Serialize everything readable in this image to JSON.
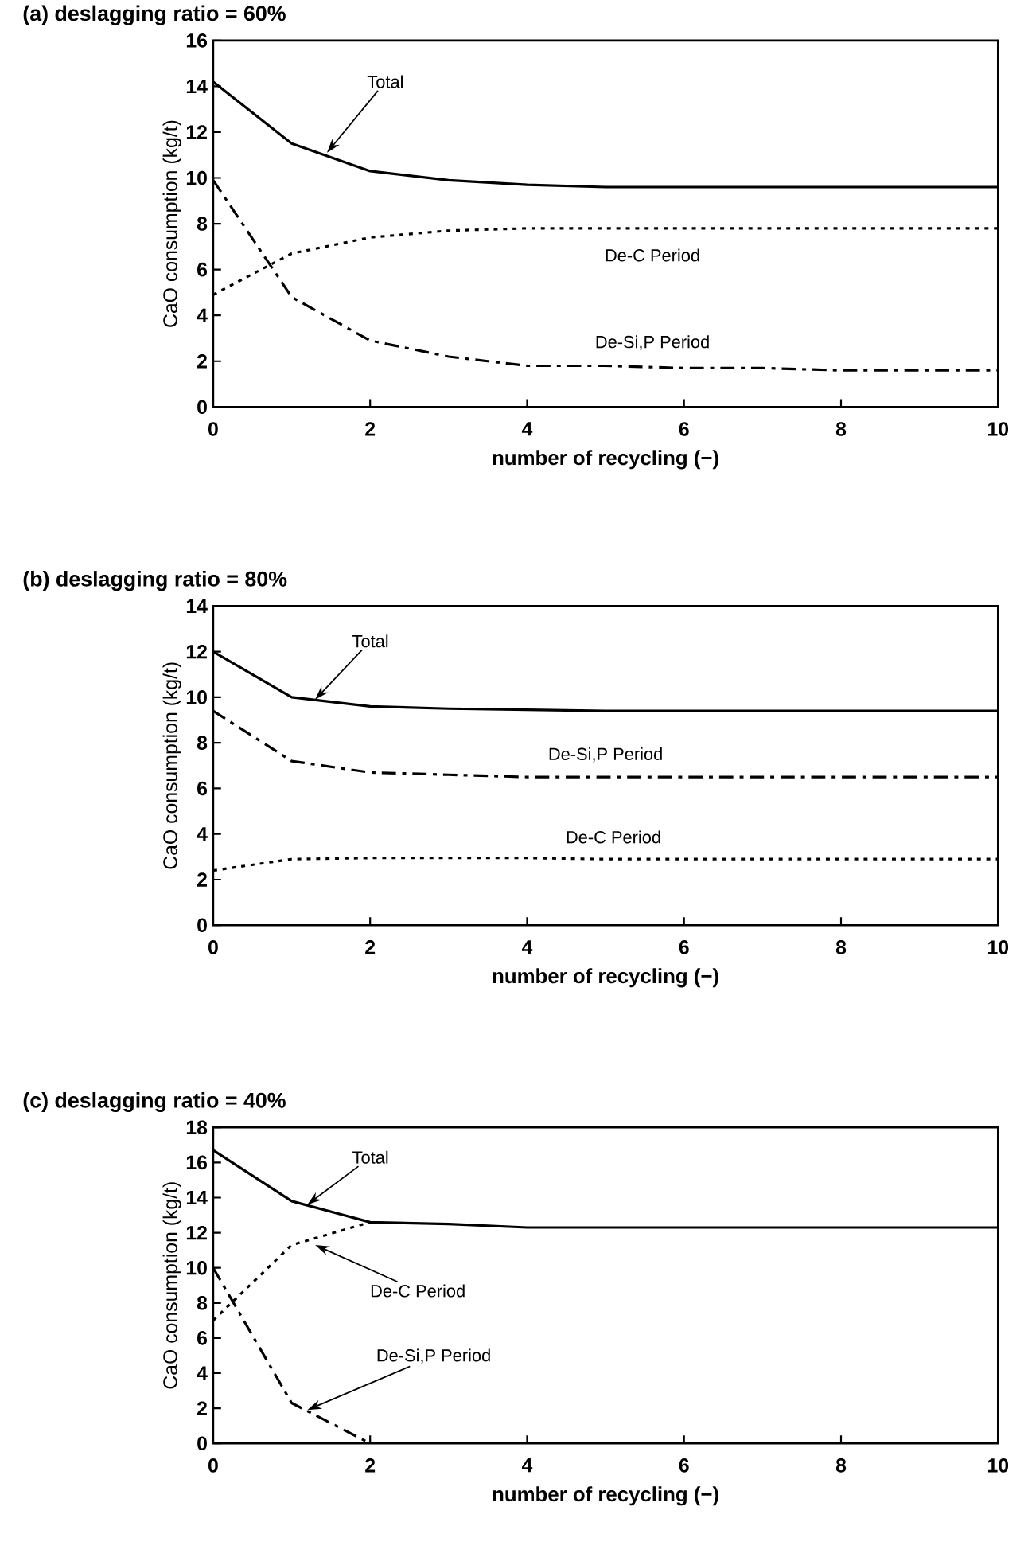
{
  "chart_data": [
    {
      "type": "line",
      "title": "(a) deslagging ratio = 60%",
      "xlabel": "number of recycling (−)",
      "ylabel": "CaO consumption (kg/t)",
      "x": [
        0,
        1,
        2,
        3,
        4,
        5,
        6,
        7,
        8,
        9,
        10
      ],
      "series": [
        {
          "color": "#000000",
          "line_style": "solid",
          "values": [
            14.2,
            11.5,
            10.3,
            9.9,
            9.7,
            9.6,
            9.6,
            9.6,
            9.6,
            9.6,
            9.6
          ]
        },
        {
          "color": "#000000",
          "line_style": "dotted",
          "values": [
            4.9,
            6.7,
            7.4,
            7.7,
            7.8,
            7.8,
            7.8,
            7.8,
            7.8,
            7.8,
            7.8
          ]
        },
        {
          "color": "#000000",
          "line_style": "dashdotted",
          "values": [
            9.9,
            4.8,
            2.9,
            2.2,
            1.8,
            1.8,
            1.7,
            1.7,
            1.6,
            1.6,
            1.6
          ]
        }
      ],
      "annotations": [
        {
          "text": "Total",
          "x": 1.45,
          "y": 11.1
        },
        {
          "text": "De-C Period",
          "x": 6,
          "y": 7.8
        },
        {
          "text": "De-Si,P Period",
          "x": 6,
          "y": 1.7
        }
      ],
      "xlim": [
        0,
        10
      ],
      "xticks": [
        0,
        2,
        4,
        6,
        8,
        10
      ],
      "ylim": [
        0,
        16
      ],
      "yticks": [
        0,
        2,
        4,
        6,
        8,
        10,
        12,
        14,
        16
      ],
      "marker": "none",
      "legend": false
    },
    {
      "type": "line",
      "title": "(b) deslagging ratio = 80%",
      "xlabel": "number of recycling (−)",
      "ylabel": "CaO consumption (kg/t)",
      "x": [
        0,
        1,
        2,
        3,
        4,
        5,
        6,
        7,
        8,
        9,
        10
      ],
      "series": [
        {
          "color": "#000000",
          "line_style": "solid",
          "values": [
            12.0,
            10.0,
            9.6,
            9.5,
            9.45,
            9.4,
            9.4,
            9.4,
            9.4,
            9.4,
            9.4
          ]
        },
        {
          "color": "#000000",
          "line_style": "dashdotted",
          "values": [
            9.4,
            7.2,
            6.7,
            6.6,
            6.5,
            6.5,
            6.5,
            6.5,
            6.5,
            6.5,
            6.5
          ]
        },
        {
          "color": "#000000",
          "line_style": "dotted",
          "values": [
            2.4,
            2.9,
            2.95,
            2.95,
            2.95,
            2.9,
            2.9,
            2.9,
            2.9,
            2.9,
            2.9
          ]
        }
      ],
      "annotations": [
        {
          "text": "Total",
          "x": 1.3,
          "y": 9.9
        },
        {
          "text": "De-Si,P Period",
          "x": 5,
          "y": 6.5
        },
        {
          "text": "De-C Period",
          "x": 5,
          "y": 2.9
        }
      ],
      "xlim": [
        0,
        10
      ],
      "xticks": [
        0,
        2,
        4,
        6,
        8,
        10
      ],
      "ylim": [
        0,
        14
      ],
      "yticks": [
        0,
        2,
        4,
        6,
        8,
        10,
        12,
        14
      ],
      "marker": "none",
      "legend": false
    },
    {
      "type": "line",
      "title": "(c) deslagging ratio = 40%",
      "xlabel": "number of recycling (−)",
      "ylabel": "CaO consumption (kg/t)",
      "x": [
        0,
        1,
        2,
        3,
        4,
        5,
        6,
        7,
        8,
        9,
        10
      ],
      "series": [
        {
          "color": "#000000",
          "line_style": "solid",
          "values": [
            16.7,
            13.8,
            12.6,
            12.5,
            12.3,
            12.3,
            12.3,
            12.3,
            12.3,
            12.3,
            12.3
          ]
        },
        {
          "color": "#000000",
          "line_style": "dotted",
          "x": [
            0,
            1,
            2
          ],
          "values": [
            7.0,
            11.3,
            12.6
          ]
        },
        {
          "color": "#000000",
          "line_style": "dashdotted",
          "x": [
            0,
            1,
            2
          ],
          "values": [
            10.0,
            2.3,
            0.0
          ]
        }
      ],
      "annotations": [
        {
          "text": "Total",
          "x": 1.2,
          "y": 13.6
        },
        {
          "text": "De-C Period",
          "x": 1.3,
          "y": 11.3
        },
        {
          "text": "De-Si,P Period",
          "x": 1.2,
          "y": 1.9
        }
      ],
      "xlim": [
        0,
        10
      ],
      "xticks": [
        0,
        2,
        4,
        6,
        8,
        10
      ],
      "ylim": [
        0,
        18
      ],
      "yticks": [
        0,
        2,
        4,
        6,
        8,
        10,
        12,
        14,
        16,
        18
      ],
      "marker": "none",
      "legend": false
    }
  ]
}
